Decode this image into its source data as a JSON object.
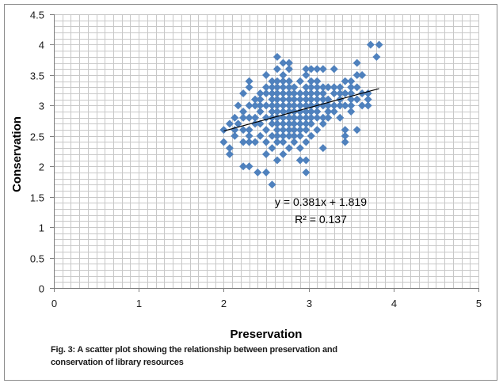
{
  "chart_data": {
    "type": "scatter",
    "xlabel": "Preservation",
    "ylabel": "Conservation",
    "xlim": [
      0,
      5
    ],
    "ylim": [
      0,
      4.5
    ],
    "xticks": [
      "0",
      "1",
      "2",
      "3",
      "4",
      "5"
    ],
    "yticks": [
      "0",
      "0.5",
      "1",
      "1.5",
      "2",
      "2.5",
      "3",
      "3.5",
      "4",
      "4.5"
    ],
    "grid": true,
    "marker_color": "#4f81bd",
    "trendline": {
      "slope": 0.381,
      "intercept": 1.819,
      "x_range": [
        2.0,
        3.83
      ],
      "equation": "y = 0.381x + 1.819",
      "r_squared": "R² = 0.137",
      "color": "#000000"
    },
    "points": [
      [
        2.0,
        2.4
      ],
      [
        2.0,
        2.6
      ],
      [
        2.07,
        2.2
      ],
      [
        2.07,
        2.3
      ],
      [
        2.07,
        2.7
      ],
      [
        2.13,
        2.5
      ],
      [
        2.13,
        2.6
      ],
      [
        2.13,
        2.8
      ],
      [
        2.17,
        3.0
      ],
      [
        2.17,
        2.7
      ],
      [
        2.23,
        2.4
      ],
      [
        2.23,
        2.6
      ],
      [
        2.23,
        2.8
      ],
      [
        2.23,
        2.9
      ],
      [
        2.23,
        3.2
      ],
      [
        2.23,
        2.0
      ],
      [
        2.3,
        2.0
      ],
      [
        2.3,
        2.4
      ],
      [
        2.3,
        2.5
      ],
      [
        2.3,
        2.6
      ],
      [
        2.3,
        2.8
      ],
      [
        2.3,
        3.0
      ],
      [
        2.3,
        3.3
      ],
      [
        2.3,
        3.4
      ],
      [
        2.37,
        2.4
      ],
      [
        2.37,
        2.7
      ],
      [
        2.37,
        2.8
      ],
      [
        2.37,
        3.0
      ],
      [
        2.37,
        3.1
      ],
      [
        2.4,
        1.9
      ],
      [
        2.43,
        2.5
      ],
      [
        2.43,
        2.7
      ],
      [
        2.43,
        2.9
      ],
      [
        2.43,
        3.0
      ],
      [
        2.43,
        3.1
      ],
      [
        2.43,
        3.2
      ],
      [
        2.5,
        1.9
      ],
      [
        2.5,
        2.2
      ],
      [
        2.5,
        2.4
      ],
      [
        2.5,
        2.6
      ],
      [
        2.5,
        2.8
      ],
      [
        2.5,
        3.0
      ],
      [
        2.5,
        3.2
      ],
      [
        2.5,
        3.3
      ],
      [
        2.5,
        3.5
      ],
      [
        2.57,
        1.7
      ],
      [
        2.57,
        2.3
      ],
      [
        2.57,
        2.5
      ],
      [
        2.57,
        2.7
      ],
      [
        2.57,
        2.8
      ],
      [
        2.57,
        2.9
      ],
      [
        2.57,
        3.0
      ],
      [
        2.57,
        3.1
      ],
      [
        2.57,
        3.2
      ],
      [
        2.57,
        3.3
      ],
      [
        2.57,
        3.4
      ],
      [
        2.63,
        2.1
      ],
      [
        2.63,
        2.4
      ],
      [
        2.63,
        2.5
      ],
      [
        2.63,
        2.6
      ],
      [
        2.63,
        2.7
      ],
      [
        2.63,
        2.8
      ],
      [
        2.63,
        2.9
      ],
      [
        2.63,
        3.0
      ],
      [
        2.63,
        3.1
      ],
      [
        2.63,
        3.2
      ],
      [
        2.63,
        3.3
      ],
      [
        2.63,
        3.4
      ],
      [
        2.63,
        3.6
      ],
      [
        2.63,
        3.8
      ],
      [
        2.7,
        2.2
      ],
      [
        2.7,
        2.4
      ],
      [
        2.7,
        2.5
      ],
      [
        2.7,
        2.6
      ],
      [
        2.7,
        2.7
      ],
      [
        2.7,
        2.8
      ],
      [
        2.7,
        2.9
      ],
      [
        2.7,
        3.0
      ],
      [
        2.7,
        3.1
      ],
      [
        2.7,
        3.2
      ],
      [
        2.7,
        3.3
      ],
      [
        2.7,
        3.4
      ],
      [
        2.7,
        3.5
      ],
      [
        2.7,
        3.7
      ],
      [
        2.77,
        2.3
      ],
      [
        2.77,
        2.5
      ],
      [
        2.77,
        2.6
      ],
      [
        2.77,
        2.7
      ],
      [
        2.77,
        2.8
      ],
      [
        2.77,
        2.9
      ],
      [
        2.77,
        3.0
      ],
      [
        2.77,
        3.1
      ],
      [
        2.77,
        3.2
      ],
      [
        2.77,
        3.3
      ],
      [
        2.77,
        3.4
      ],
      [
        2.77,
        3.6
      ],
      [
        2.77,
        3.7
      ],
      [
        2.83,
        2.4
      ],
      [
        2.83,
        2.5
      ],
      [
        2.83,
        2.6
      ],
      [
        2.83,
        2.7
      ],
      [
        2.83,
        2.8
      ],
      [
        2.83,
        2.9
      ],
      [
        2.83,
        3.0
      ],
      [
        2.83,
        3.1
      ],
      [
        2.83,
        3.2
      ],
      [
        2.83,
        3.3
      ],
      [
        2.9,
        2.1
      ],
      [
        2.9,
        2.3
      ],
      [
        2.9,
        2.5
      ],
      [
        2.9,
        2.6
      ],
      [
        2.9,
        2.7
      ],
      [
        2.9,
        2.8
      ],
      [
        2.9,
        2.9
      ],
      [
        2.9,
        3.0
      ],
      [
        2.9,
        3.1
      ],
      [
        2.9,
        3.2
      ],
      [
        2.9,
        3.4
      ],
      [
        2.97,
        1.9
      ],
      [
        2.97,
        2.1
      ],
      [
        2.97,
        2.4
      ],
      [
        2.97,
        2.6
      ],
      [
        2.97,
        2.7
      ],
      [
        2.97,
        2.8
      ],
      [
        2.97,
        2.9
      ],
      [
        2.97,
        3.0
      ],
      [
        2.97,
        3.1
      ],
      [
        2.97,
        3.2
      ],
      [
        2.97,
        3.3
      ],
      [
        2.97,
        3.5
      ],
      [
        2.97,
        3.6
      ],
      [
        3.03,
        2.5
      ],
      [
        3.03,
        2.7
      ],
      [
        3.03,
        2.8
      ],
      [
        3.03,
        2.9
      ],
      [
        3.03,
        3.0
      ],
      [
        3.03,
        3.1
      ],
      [
        3.03,
        3.2
      ],
      [
        3.03,
        3.3
      ],
      [
        3.03,
        3.4
      ],
      [
        3.03,
        3.6
      ],
      [
        3.1,
        2.6
      ],
      [
        3.1,
        2.8
      ],
      [
        3.1,
        2.9
      ],
      [
        3.1,
        3.0
      ],
      [
        3.1,
        3.1
      ],
      [
        3.1,
        3.2
      ],
      [
        3.1,
        3.3
      ],
      [
        3.1,
        3.4
      ],
      [
        3.1,
        3.6
      ],
      [
        3.17,
        2.3
      ],
      [
        3.17,
        2.7
      ],
      [
        3.17,
        2.8
      ],
      [
        3.17,
        3.0
      ],
      [
        3.17,
        3.1
      ],
      [
        3.17,
        3.2
      ],
      [
        3.17,
        3.3
      ],
      [
        3.17,
        3.6
      ],
      [
        3.23,
        2.8
      ],
      [
        3.23,
        2.9
      ],
      [
        3.23,
        3.0
      ],
      [
        3.23,
        3.1
      ],
      [
        3.23,
        3.3
      ],
      [
        3.3,
        2.9
      ],
      [
        3.3,
        3.0
      ],
      [
        3.3,
        3.2
      ],
      [
        3.3,
        3.3
      ],
      [
        3.3,
        3.6
      ],
      [
        3.37,
        2.8
      ],
      [
        3.37,
        3.0
      ],
      [
        3.37,
        3.1
      ],
      [
        3.37,
        3.2
      ],
      [
        3.37,
        3.3
      ],
      [
        3.43,
        2.4
      ],
      [
        3.43,
        2.5
      ],
      [
        3.43,
        2.6
      ],
      [
        3.43,
        3.0
      ],
      [
        3.43,
        3.2
      ],
      [
        3.43,
        3.4
      ],
      [
        3.5,
        2.9
      ],
      [
        3.5,
        3.0
      ],
      [
        3.5,
        3.1
      ],
      [
        3.5,
        3.2
      ],
      [
        3.5,
        3.3
      ],
      [
        3.5,
        3.4
      ],
      [
        3.57,
        2.6
      ],
      [
        3.57,
        3.1
      ],
      [
        3.57,
        3.3
      ],
      [
        3.57,
        3.5
      ],
      [
        3.57,
        3.7
      ],
      [
        3.63,
        3.0
      ],
      [
        3.63,
        3.2
      ],
      [
        3.63,
        3.5
      ],
      [
        3.7,
        3.0
      ],
      [
        3.7,
        3.1
      ],
      [
        3.7,
        3.2
      ],
      [
        3.73,
        4.0
      ],
      [
        3.8,
        3.8
      ],
      [
        3.83,
        4.0
      ]
    ]
  },
  "caption": {
    "line1": "Fig. 3: A scatter plot showing the relationship between preservation and",
    "line2": "conservation  of library resources"
  }
}
